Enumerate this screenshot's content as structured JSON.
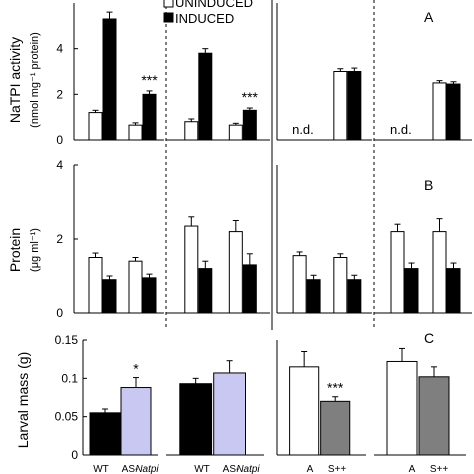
{
  "legend": {
    "uninduced": "UNINDUCED",
    "induced": "INDUCED",
    "placement": "top-center"
  },
  "chart_data": [
    {
      "type": "bar",
      "panel_letter": "A",
      "ylabel": "NaTPI activity",
      "ylabel_units": "(nmol mg⁻¹ protein)",
      "ylim": [
        0,
        6
      ],
      "yticks": [
        "0",
        "2",
        "4"
      ],
      "groups": [
        {
          "pairs": [
            {
              "uninduced": 1.2,
              "uninduced_err": 0.1,
              "induced": 5.3,
              "induced_err": 0.3,
              "sig": ""
            },
            {
              "uninduced": 0.65,
              "uninduced_err": 0.1,
              "induced": 2.0,
              "induced_err": 0.15,
              "sig": "***"
            }
          ]
        },
        {
          "pairs": [
            {
              "uninduced": 0.8,
              "uninduced_err": 0.12,
              "induced": 3.8,
              "induced_err": 0.2,
              "sig": ""
            },
            {
              "uninduced": 0.65,
              "uninduced_err": 0.08,
              "induced": 1.3,
              "induced_err": 0.1,
              "sig": "***"
            }
          ]
        },
        {
          "pairs": [
            {
              "uninduced": null,
              "induced": null,
              "note": "n.d."
            },
            {
              "uninduced": 3.0,
              "uninduced_err": 0.12,
              "induced": 3.0,
              "induced_err": 0.15,
              "sig": ""
            }
          ]
        },
        {
          "pairs": [
            {
              "uninduced": null,
              "induced": null,
              "note": "n.d."
            },
            {
              "uninduced": 2.5,
              "uninduced_err": 0.1,
              "induced": 2.45,
              "induced_err": 0.1,
              "sig": ""
            }
          ]
        }
      ]
    },
    {
      "type": "bar",
      "panel_letter": "B",
      "ylabel": "Protein",
      "ylabel_units": "(μg ml⁻¹)",
      "ylim": [
        0,
        4
      ],
      "yticks": [
        "0",
        "2",
        "4"
      ],
      "groups": [
        {
          "pairs": [
            {
              "uninduced": 1.5,
              "uninduced_err": 0.12,
              "induced": 0.9,
              "induced_err": 0.1
            },
            {
              "uninduced": 1.4,
              "uninduced_err": 0.1,
              "induced": 0.95,
              "induced_err": 0.1
            }
          ]
        },
        {
          "pairs": [
            {
              "uninduced": 2.35,
              "uninduced_err": 0.25,
              "induced": 1.2,
              "induced_err": 0.2
            },
            {
              "uninduced": 2.2,
              "uninduced_err": 0.3,
              "induced": 1.3,
              "induced_err": 0.3
            }
          ]
        },
        {
          "pairs": [
            {
              "uninduced": 1.55,
              "uninduced_err": 0.1,
              "induced": 0.9,
              "induced_err": 0.12
            },
            {
              "uninduced": 1.5,
              "uninduced_err": 0.1,
              "induced": 0.9,
              "induced_err": 0.12
            }
          ]
        },
        {
          "pairs": [
            {
              "uninduced": 2.2,
              "uninduced_err": 0.2,
              "induced": 1.2,
              "induced_err": 0.15
            },
            {
              "uninduced": 2.2,
              "uninduced_err": 0.35,
              "induced": 1.2,
              "induced_err": 0.15
            }
          ]
        }
      ]
    },
    {
      "type": "bar",
      "panel_letter": "C",
      "ylabel": "Larval mass (g)",
      "ylim": [
        0,
        0.15
      ],
      "yticks": [
        "0",
        "0.05",
        "0.1",
        "0.15"
      ],
      "groups": [
        {
          "bars": [
            {
              "value": 0.055,
              "err": 0.005,
              "fill": "#000000"
            },
            {
              "value": 0.088,
              "err": 0.013,
              "fill": "#c8c8f2",
              "sig": "*"
            }
          ]
        },
        {
          "bars": [
            {
              "value": 0.093,
              "err": 0.007,
              "fill": "#000000"
            },
            {
              "value": 0.107,
              "err": 0.016,
              "fill": "#c8c8f2"
            }
          ]
        },
        {
          "bars": [
            {
              "value": 0.115,
              "err": 0.02,
              "fill": "#ffffff"
            },
            {
              "value": 0.07,
              "err": 0.006,
              "fill": "#7f7f7f",
              "sig": "***"
            }
          ]
        },
        {
          "bars": [
            {
              "value": 0.122,
              "err": 0.017,
              "fill": "#ffffff"
            },
            {
              "value": 0.102,
              "err": 0.013,
              "fill": "#7f7f7f"
            }
          ]
        }
      ]
    }
  ],
  "x_labels": [
    "WT",
    "AS-",
    "Natpi",
    "WT",
    "AS-",
    "Natpi",
    "A",
    "S++",
    "A",
    "S++"
  ]
}
